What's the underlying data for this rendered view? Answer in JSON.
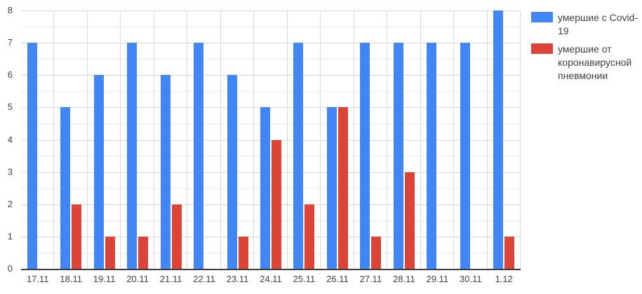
{
  "chart_data": {
    "type": "bar",
    "title": "",
    "xlabel": "",
    "ylabel": "",
    "categories": [
      "17.11",
      "18.11",
      "19.11",
      "20.11",
      "21.11",
      "22.11",
      "23.11",
      "24.11",
      "25.11",
      "26.11",
      "27.11",
      "28.11",
      "29.11",
      "30.11",
      "1.12"
    ],
    "series": [
      {
        "key": "with-covid",
        "name": "умершие с Covid-19",
        "color": "#4285f4",
        "values": [
          7,
          5,
          6,
          7,
          6,
          7,
          6,
          5,
          7,
          5,
          7,
          7,
          7,
          7,
          8
        ]
      },
      {
        "key": "pneumonia",
        "name": "умершие от коронавирусной пневмонии",
        "color": "#db4437",
        "values": [
          0,
          2,
          1,
          1,
          2,
          0,
          1,
          4,
          2,
          5,
          1,
          3,
          0,
          0,
          1
        ]
      }
    ],
    "ylim": [
      0,
      8
    ],
    "y_ticks": [
      0,
      1,
      2,
      3,
      4,
      5,
      6,
      7,
      8
    ],
    "grid": {
      "horizontal_major": true,
      "horizontal_minor_step": 0.5,
      "vertical_category_boundaries": true
    },
    "legend_position": "right"
  },
  "colors": {
    "series_blue": "#4285f4",
    "series_red": "#db4437",
    "gridline_major": "#d6d6d6",
    "gridline_minor": "#ececec",
    "gridline_vertical": "#d9d9d9",
    "axis_baseline": "#3c3c3c",
    "tick_label": "#424242",
    "legend_text": "#3c4043",
    "background": "#ffffff"
  }
}
